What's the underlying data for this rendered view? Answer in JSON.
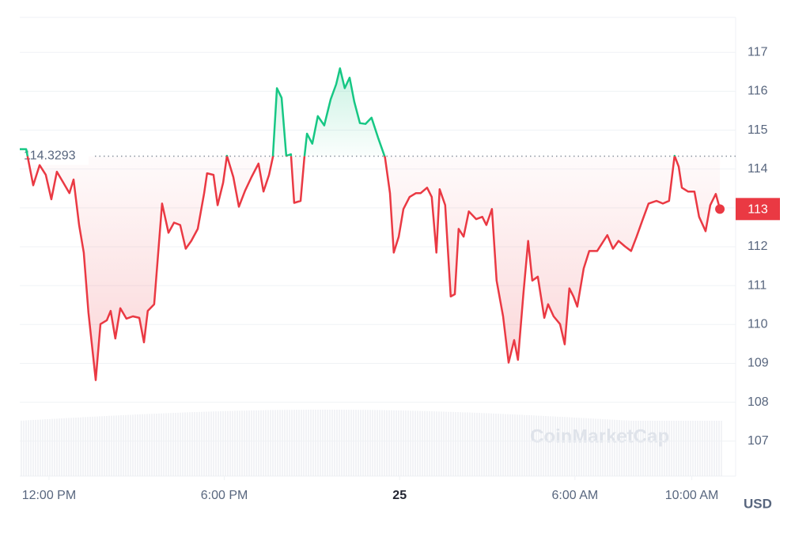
{
  "chart_data": {
    "type": "line",
    "x": [
      -1.0,
      -0.78,
      -0.54,
      -0.32,
      -0.11,
      0.08,
      0.27,
      0.49,
      0.7,
      0.84,
      1.03,
      1.19,
      1.35,
      1.6,
      1.76,
      1.98,
      2.11,
      2.27,
      2.44,
      2.65,
      2.87,
      3.09,
      3.25,
      3.38,
      3.6,
      3.87,
      4.09,
      4.28,
      4.49,
      4.68,
      4.87,
      5.09,
      5.31,
      5.41,
      5.63,
      5.77,
      5.96,
      6.09,
      6.31,
      6.5,
      6.71,
      6.93,
      7.17,
      7.34,
      7.53,
      7.66,
      7.8,
      7.96,
      8.12,
      8.28,
      8.39,
      8.61,
      8.74,
      8.83,
      9.01,
      9.2,
      9.42,
      9.64,
      9.83,
      9.96,
      10.12,
      10.29,
      10.45,
      10.64,
      10.83,
      11.04,
      11.26,
      11.5,
      11.67,
      11.8,
      11.97,
      12.13,
      12.34,
      12.56,
      12.72,
      12.94,
      13.1,
      13.26,
      13.37,
      13.56,
      13.75,
      13.89,
      14.02,
      14.19,
      14.37,
      14.62,
      14.83,
      14.97,
      15.16,
      15.32,
      15.54,
      15.73,
      15.92,
      16.05,
      16.24,
      16.4,
      16.54,
      16.73,
      16.95,
      17.08,
      17.27,
      17.49,
      17.65,
      17.81,
      17.95,
      18.08,
      18.3,
      18.49,
      18.76,
      19.11,
      19.3,
      19.49,
      19.71,
      19.92,
      20.11,
      20.3,
      20.52,
      20.79,
      21.01,
      21.22,
      21.41,
      21.55,
      21.66,
      21.87,
      22.09,
      22.25,
      22.47,
      22.63,
      22.82,
      22.96
    ],
    "values": [
      114.51,
      114.51,
      113.58,
      114.1,
      113.85,
      113.22,
      113.93,
      113.65,
      113.38,
      113.73,
      112.56,
      111.85,
      110.31,
      108.57,
      110.01,
      110.11,
      110.35,
      109.64,
      110.42,
      110.15,
      110.21,
      110.17,
      109.54,
      110.35,
      110.52,
      113.11,
      112.36,
      112.62,
      112.56,
      111.95,
      112.15,
      112.46,
      113.38,
      113.89,
      113.85,
      113.07,
      113.65,
      114.34,
      113.79,
      113.03,
      113.44,
      113.79,
      114.14,
      113.42,
      113.85,
      114.3,
      116.08,
      115.83,
      114.34,
      114.38,
      113.13,
      113.18,
      114.3,
      114.91,
      114.65,
      115.36,
      115.12,
      115.79,
      116.18,
      116.59,
      116.08,
      116.35,
      115.73,
      115.18,
      115.16,
      115.32,
      114.81,
      114.3,
      113.38,
      111.85,
      112.26,
      112.97,
      113.28,
      113.38,
      113.38,
      113.52,
      113.28,
      111.85,
      113.48,
      113.07,
      110.72,
      110.78,
      112.46,
      112.26,
      112.91,
      112.71,
      112.77,
      112.56,
      112.97,
      111.13,
      110.21,
      109.02,
      109.6,
      109.09,
      110.82,
      112.15,
      111.13,
      111.23,
      110.17,
      110.52,
      110.21,
      110.01,
      109.49,
      110.93,
      110.72,
      110.46,
      111.44,
      111.89,
      111.89,
      112.3,
      111.95,
      112.15,
      112.01,
      111.89,
      112.26,
      112.66,
      113.11,
      113.18,
      113.11,
      113.18,
      114.34,
      114.06,
      113.52,
      113.42,
      113.42,
      112.77,
      112.4,
      113.07,
      113.36,
      112.97
    ],
    "baseline": 114.3293,
    "last_label": "113",
    "color_up": "#16c784",
    "color_down": "#ea3943",
    "xlim": [
      -1.0,
      23.5
    ],
    "xticks": [
      {
        "value": 0,
        "label": "12:00 PM"
      },
      {
        "value": 6,
        "label": "6:00 PM"
      },
      {
        "value": 12,
        "label": "25"
      },
      {
        "value": 18,
        "label": "6:00 AM"
      },
      {
        "value": 22,
        "label": "10:00 AM"
      }
    ],
    "ylim": [
      106.1,
      117.9
    ],
    "yticks": [
      107,
      108,
      109,
      110,
      111,
      112,
      113,
      114,
      115,
      116,
      117
    ],
    "grid": true,
    "currency": "USD",
    "watermark": "CoinMarketCap"
  }
}
